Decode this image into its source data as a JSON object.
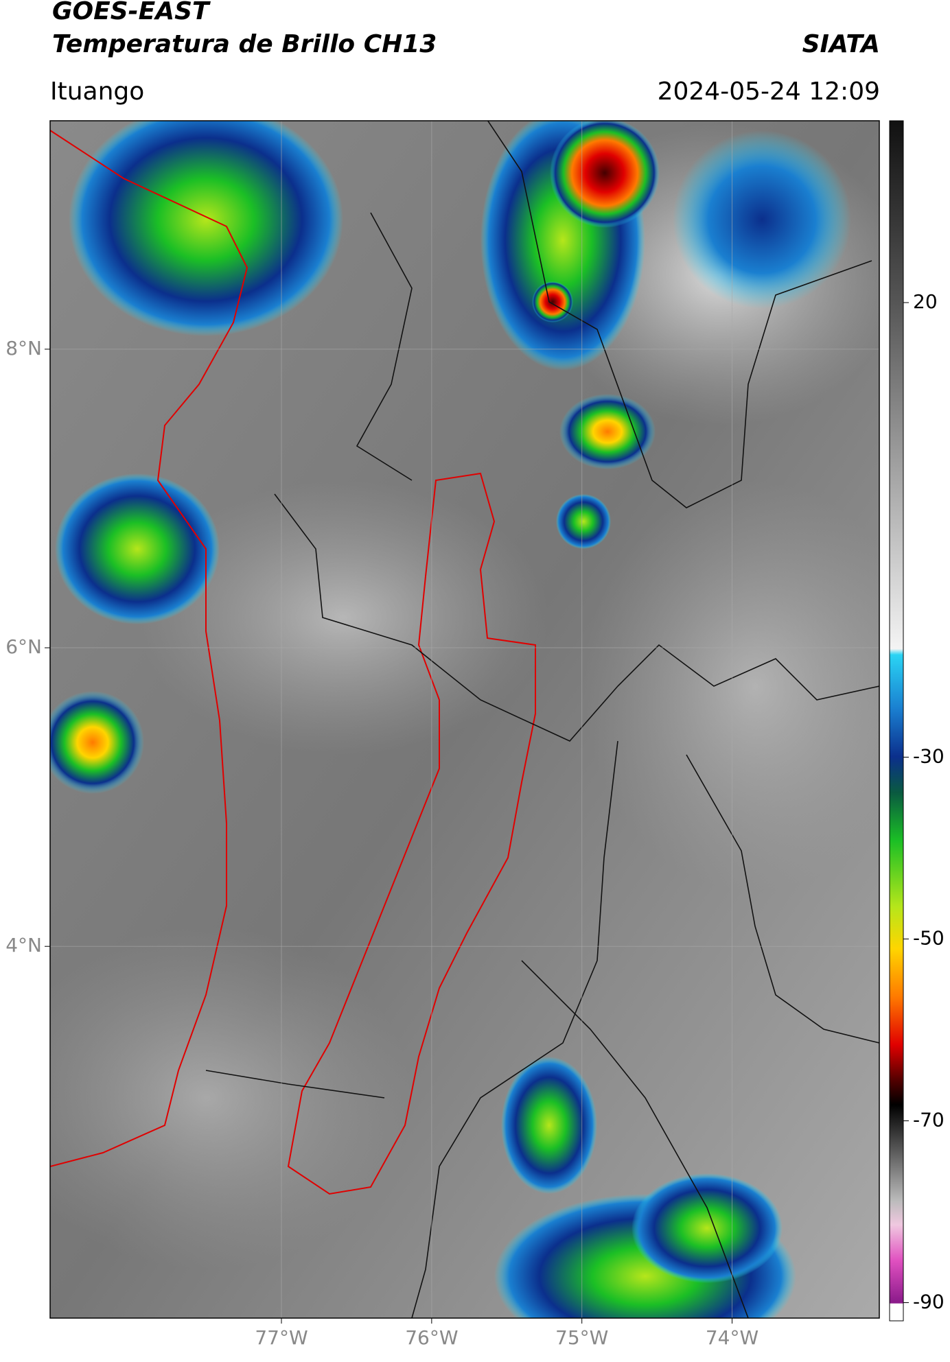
{
  "header": {
    "title_line1": "GOES-EAST",
    "title_line2": "Temperatura de Brillo CH13",
    "source": "SIATA",
    "location": "Ituango",
    "datetime": "2024-05-24 12:09"
  },
  "map": {
    "lon_lim": [
      -78.54,
      -73.02
    ],
    "lat_lim": [
      1.51,
      9.53
    ],
    "lon_ticks": [
      {
        "value": -77,
        "label": "77°W"
      },
      {
        "value": -76,
        "label": "76°W"
      },
      {
        "value": -75,
        "label": "75°W"
      },
      {
        "value": -74,
        "label": "74°W"
      }
    ],
    "lat_ticks": [
      {
        "value": 8,
        "label": "8°N"
      },
      {
        "value": 6,
        "label": "6°N"
      },
      {
        "value": 4,
        "label": "4°N"
      }
    ]
  },
  "colorbar": {
    "lim": [
      -92,
      40
    ],
    "ticks": [
      20,
      -30,
      -50,
      -70,
      -90
    ]
  }
}
